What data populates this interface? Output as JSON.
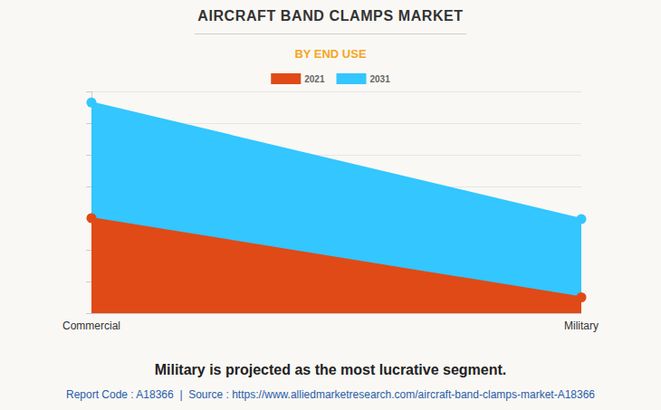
{
  "chart_data": {
    "type": "area",
    "title": "AIRCRAFT BAND CLAMPS MARKET",
    "subtitle": "BY END USE",
    "categories": [
      "Commercial",
      "Military"
    ],
    "series": [
      {
        "name": "2021",
        "color": "#e04a17",
        "values": [
          3.0,
          0.5
        ],
        "marker": "circle"
      },
      {
        "name": "2031",
        "color": "#33c6ff",
        "values": [
          6.65,
          2.97
        ],
        "marker": "circle"
      }
    ],
    "stacked": false,
    "ylim": [
      0,
      7
    ],
    "yticks": [
      0,
      1,
      2,
      3,
      4,
      5,
      6,
      7
    ],
    "grid": true,
    "legend": "top",
    "tick_labels": "x",
    "annotations": [
      "Military is projected as the most lucrative segment.",
      "Report Code : A18366  |  Source : https://www.alliedmarketresearch.com/aircraft-band-clamps-market-A18366"
    ]
  }
}
